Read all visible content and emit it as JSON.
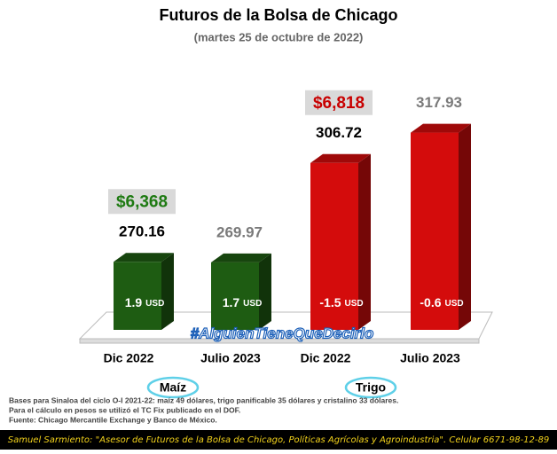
{
  "chart_data": {
    "type": "bar3d",
    "title": "Futuros de la Bolsa de Chicago",
    "subtitle": "(martes 25 de octubre de 2022)",
    "categories": [
      "Dic 2022",
      "Julio 2023",
      "Dic 2022",
      "Julio 2023"
    ],
    "values": [
      270.16,
      269.97,
      306.72,
      317.93
    ],
    "colors": [
      "#1e5c12",
      "#1e5c12",
      "#d40c0c",
      "#d40c0c"
    ],
    "label_colors": [
      "#000000",
      "#7a7a7a",
      "#000000",
      "#7a7a7a"
    ],
    "changes": [
      1.9,
      1.7,
      -1.5,
      -0.6
    ],
    "change_unit": "USD",
    "ylim": [
      245,
      330
    ],
    "groups": [
      {
        "name": "Maíz",
        "value": 6368,
        "value_label": "$6,368",
        "color": "#1e7a12"
      },
      {
        "name": "Trigo",
        "value": 6818,
        "value_label": "$6,818",
        "color": "#c80000"
      }
    ],
    "watermark": "#AlguienTieneQueDecirlo",
    "notes": [
      "Bases para Sinaloa del ciclo O-I 2021-22: maíz 49 dólares, trigo panificable 35 dólares y cristalino 33 dólares.",
      "Para el cálculo en pesos se utilizó el TC Fix publicado en el DOF.",
      "Fuente: Chicago Mercantile Exchange y Banco de México."
    ],
    "footer_author": "Samuel Sarmiento:",
    "footer_text": " \"Asesor de Futuros de la Bolsa de Chicago, Políticas Agrícolas y Agroindustria\". Celular 6671-98-12-89"
  }
}
